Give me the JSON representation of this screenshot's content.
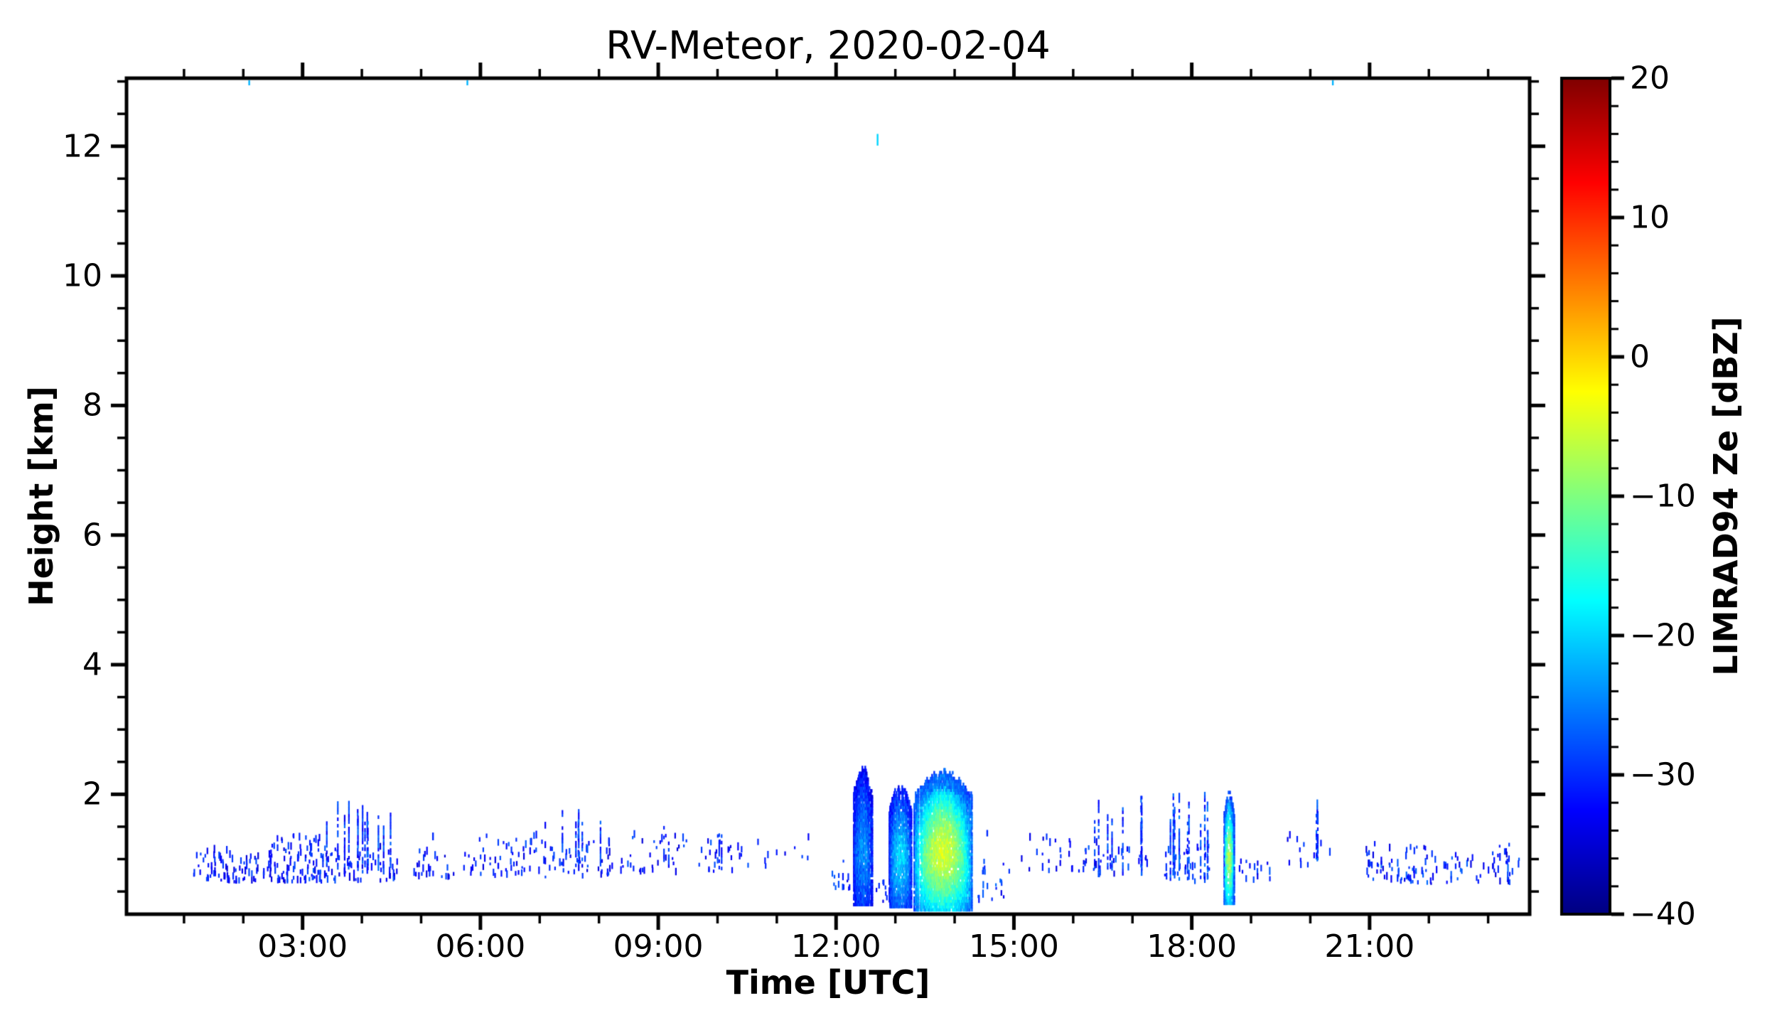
{
  "figure": {
    "title": "RV-Meteor, 2020-02-04",
    "background": "#ffffff"
  },
  "axes": {
    "xlabel": "Time [UTC]",
    "ylabel": "Height [km]",
    "x_range_hours": [
      0.03,
      23.7
    ],
    "y_range_km": [
      0.15,
      13.05
    ],
    "x_major_ticks": [
      {
        "hour": 3,
        "label": "03:00"
      },
      {
        "hour": 6,
        "label": "06:00"
      },
      {
        "hour": 9,
        "label": "09:00"
      },
      {
        "hour": 12,
        "label": "12:00"
      },
      {
        "hour": 15,
        "label": "15:00"
      },
      {
        "hour": 18,
        "label": "18:00"
      },
      {
        "hour": 21,
        "label": "21:00"
      }
    ],
    "x_minor_step_hours": 1,
    "y_major_ticks": [
      {
        "km": 12,
        "label": "12"
      },
      {
        "km": 10,
        "label": "10"
      },
      {
        "km": 8,
        "label": "8"
      },
      {
        "km": 6,
        "label": "6"
      },
      {
        "km": 4,
        "label": "4"
      },
      {
        "km": 2,
        "label": "2"
      }
    ],
    "y_minor_step_km": 0.5
  },
  "colorbar": {
    "label": "LIMRAD94 Ze [dBZ]",
    "range": [
      -40,
      20
    ],
    "colormap": "jet",
    "major_ticks": [
      {
        "value": 20,
        "label": "20"
      },
      {
        "value": 10,
        "label": "10"
      },
      {
        "value": 0,
        "label": "0"
      },
      {
        "value": -10,
        "label": "−10"
      },
      {
        "value": -20,
        "label": "−20"
      },
      {
        "value": -30,
        "label": "−30"
      },
      {
        "value": -40,
        "label": "−40"
      }
    ],
    "minor_step": 2,
    "gradient_stops": [
      "#000080",
      "#0000ff",
      "#007fff",
      "#00ffff",
      "#7fff7f",
      "#ffff00",
      "#ff7f00",
      "#ff0000",
      "#7f0000"
    ]
  },
  "chart_data": {
    "type": "heatmap",
    "title": "RV-Meteor, 2020-02-04",
    "xlabel": "Time [UTC]",
    "ylabel": "Height [km]",
    "value_label": "LIMRAD94 Ze [dBZ]",
    "x_range_hours": [
      0.03,
      23.7
    ],
    "y_range_km": [
      0.15,
      13.05
    ],
    "value_range_dbz": [
      -40,
      20
    ],
    "colormap": "jet",
    "description": "Scattered shallow boundary-layer radar echoes mostly below 2.5 km all day; strongest precipitating cloud 13:20-14:20 UTC (Ze up to ~0 dBZ), dense columns 12:20-13:30, narrow intense column ~18:40, isolated echo at 12.1 km near 12:40.",
    "clusters": [
      {
        "kind": "speckle",
        "t0": 1.15,
        "t1": 2.35,
        "h0": 0.62,
        "h1": 1.1,
        "n": 75,
        "dbz": [
          -35,
          -28
        ]
      },
      {
        "kind": "speckle",
        "t0": 2.4,
        "t1": 3.3,
        "h0": 0.62,
        "h1": 1.35,
        "n": 95,
        "dbz": [
          -35,
          -27
        ]
      },
      {
        "kind": "speckle",
        "t0": 3.3,
        "t1": 4.6,
        "h0": 0.62,
        "h1": 1.15,
        "n": 65,
        "dbz": [
          -35,
          -27
        ]
      },
      {
        "kind": "streaks",
        "t0": 3.35,
        "t1": 4.55,
        "h0": 0.7,
        "h1": 2.0,
        "n": 13,
        "dbz": [
          -34,
          -26
        ]
      },
      {
        "kind": "speckle",
        "t0": 4.85,
        "t1": 5.55,
        "h0": 0.68,
        "h1": 1.1,
        "n": 26,
        "dbz": [
          -35,
          -28
        ]
      },
      {
        "kind": "dash",
        "t": 5.2,
        "h": 1.35,
        "len": 0.12,
        "dbz": -30
      },
      {
        "kind": "speckle",
        "t0": 5.7,
        "t1": 7.0,
        "h0": 0.7,
        "h1": 1.35,
        "n": 55,
        "dbz": [
          -35,
          -27
        ]
      },
      {
        "kind": "speckle",
        "t0": 7.0,
        "t1": 8.25,
        "h0": 0.7,
        "h1": 1.25,
        "n": 48,
        "dbz": [
          -35,
          -27
        ]
      },
      {
        "kind": "streaks",
        "t0": 7.05,
        "t1": 8.1,
        "h0": 0.75,
        "h1": 1.8,
        "n": 7,
        "dbz": [
          -34,
          -26
        ]
      },
      {
        "kind": "speckle",
        "t0": 8.35,
        "t1": 9.35,
        "h0": 0.75,
        "h1": 1.35,
        "n": 30,
        "dbz": [
          -35,
          -27
        ]
      },
      {
        "kind": "streaks",
        "t0": 9.05,
        "t1": 9.2,
        "h0": 0.8,
        "h1": 1.55,
        "n": 2,
        "dbz": [
          -33,
          -27
        ]
      },
      {
        "kind": "speckle",
        "t0": 9.4,
        "t1": 10.55,
        "h0": 0.78,
        "h1": 1.35,
        "n": 28,
        "dbz": [
          -35,
          -27
        ]
      },
      {
        "kind": "streaks",
        "t0": 9.95,
        "t1": 10.1,
        "h0": 0.8,
        "h1": 1.5,
        "n": 2,
        "dbz": [
          -33,
          -27
        ]
      },
      {
        "kind": "speckle",
        "t0": 10.6,
        "t1": 11.55,
        "h0": 0.85,
        "h1": 1.45,
        "n": 10,
        "dbz": [
          -34,
          -28
        ]
      },
      {
        "kind": "speckle",
        "t0": 11.9,
        "t1": 12.25,
        "h0": 0.5,
        "h1": 0.95,
        "n": 14,
        "dbz": [
          -34,
          -27
        ]
      },
      {
        "kind": "mass",
        "t0": 12.3,
        "t1": 12.62,
        "h0": 0.28,
        "h1": 2.38,
        "core": -24,
        "edge": -33,
        "gap": 0.18
      },
      {
        "kind": "speckle",
        "t0": 12.62,
        "t1": 12.9,
        "h0": 0.3,
        "h1": 0.75,
        "n": 8,
        "dbz": [
          -34,
          -28
        ]
      },
      {
        "kind": "mass",
        "t0": 12.9,
        "t1": 13.28,
        "h0": 0.25,
        "h1": 2.1,
        "core": -20,
        "edge": -32,
        "gap": 0.22
      },
      {
        "kind": "mass",
        "t0": 13.32,
        "t1": 14.3,
        "h0": 0.2,
        "h1": 2.32,
        "core": -5,
        "edge": -28,
        "gap": 0.1
      },
      {
        "kind": "dash",
        "t": 12.7,
        "h": 12.1,
        "len": 0.18,
        "dbz": -20
      },
      {
        "kind": "speckle",
        "t0": 14.35,
        "t1": 14.95,
        "h0": 0.3,
        "h1": 0.95,
        "n": 20,
        "dbz": [
          -34,
          -26
        ]
      },
      {
        "kind": "dash",
        "t": 14.55,
        "h": 1.4,
        "len": 0.1,
        "dbz": -30
      },
      {
        "kind": "speckle",
        "t0": 15.1,
        "t1": 16.2,
        "h0": 0.78,
        "h1": 1.3,
        "n": 24,
        "dbz": [
          -35,
          -28
        ]
      },
      {
        "kind": "speckle",
        "t0": 16.2,
        "t1": 17.25,
        "h0": 0.72,
        "h1": 1.25,
        "n": 30,
        "dbz": [
          -35,
          -27
        ]
      },
      {
        "kind": "streaks",
        "t0": 16.3,
        "t1": 17.2,
        "h0": 0.72,
        "h1": 2.0,
        "n": 9,
        "dbz": [
          -34,
          -26
        ]
      },
      {
        "kind": "speckle",
        "t0": 17.5,
        "t1": 18.45,
        "h0": 0.6,
        "h1": 1.2,
        "n": 26,
        "dbz": [
          -34,
          -27
        ]
      },
      {
        "kind": "streaks",
        "t0": 17.55,
        "t1": 18.45,
        "h0": 0.62,
        "h1": 2.05,
        "n": 11,
        "dbz": [
          -33,
          -25
        ]
      },
      {
        "kind": "mass",
        "t0": 18.55,
        "t1": 18.72,
        "h0": 0.3,
        "h1": 2.0,
        "core": -7,
        "edge": -30,
        "gap": 0.1
      },
      {
        "kind": "speckle",
        "t0": 18.8,
        "t1": 19.4,
        "h0": 0.6,
        "h1": 1.0,
        "n": 15,
        "dbz": [
          -34,
          -27
        ]
      },
      {
        "kind": "speckle",
        "t0": 19.6,
        "t1": 20.4,
        "h0": 0.85,
        "h1": 1.35,
        "n": 12,
        "dbz": [
          -34,
          -28
        ]
      },
      {
        "kind": "streaks",
        "t0": 20.05,
        "t1": 20.2,
        "h0": 0.85,
        "h1": 1.9,
        "n": 3,
        "dbz": [
          -33,
          -26
        ]
      },
      {
        "kind": "speckle",
        "t0": 20.9,
        "t1": 23.55,
        "h0": 0.6,
        "h1": 1.2,
        "n": 120,
        "dbz": [
          -35,
          -26
        ]
      },
      {
        "kind": "dash",
        "t": 2.1,
        "h": 12.98,
        "len": 0.08,
        "dbz": -22
      },
      {
        "kind": "dash",
        "t": 5.78,
        "h": 12.98,
        "len": 0.08,
        "dbz": -22
      },
      {
        "kind": "dash",
        "t": 20.38,
        "h": 12.98,
        "len": 0.08,
        "dbz": -22
      }
    ]
  }
}
